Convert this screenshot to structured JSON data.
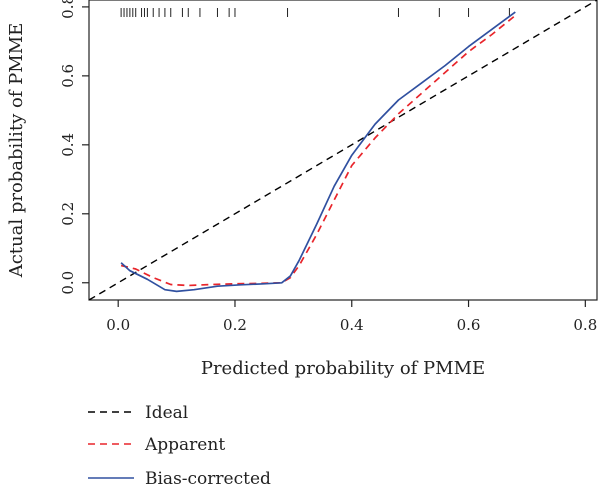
{
  "chart_data": {
    "type": "line",
    "xlabel": "Predicted probability of PMME",
    "ylabel": "Actual probability of PMME",
    "xlim": [
      -0.05,
      0.82
    ],
    "ylim": [
      -0.05,
      0.82
    ],
    "x_ticks": [
      0.0,
      0.2,
      0.4,
      0.6,
      0.8
    ],
    "x_tick_labels": [
      "0.0",
      "0.2",
      "0.4",
      "0.6",
      "0.8"
    ],
    "y_ticks": [
      0.0,
      0.2,
      0.4,
      0.6,
      0.8
    ],
    "y_tick_labels": [
      "0.0",
      "0.2",
      "0.4",
      "0.6",
      "0.8"
    ],
    "rug": [
      0.005,
      0.01,
      0.015,
      0.02,
      0.025,
      0.03,
      0.04,
      0.045,
      0.05,
      0.06,
      0.07,
      0.08,
      0.09,
      0.11,
      0.12,
      0.14,
      0.17,
      0.19,
      0.2,
      0.29,
      0.48,
      0.55,
      0.6,
      0.67
    ],
    "legend_position": "bottom-left",
    "series": [
      {
        "name": "Ideal",
        "color": "#000000",
        "dash": "dashed",
        "x": [
          -0.05,
          0.82
        ],
        "y": [
          -0.05,
          0.82
        ]
      },
      {
        "name": "Apparent",
        "color": "#e8252b",
        "dash": "dashed",
        "x": [
          0.005,
          0.03,
          0.06,
          0.09,
          0.12,
          0.16,
          0.2,
          0.24,
          0.28,
          0.295,
          0.31,
          0.34,
          0.37,
          0.4,
          0.44,
          0.48,
          0.52,
          0.56,
          0.6,
          0.64,
          0.68
        ],
        "y": [
          0.05,
          0.04,
          0.015,
          -0.005,
          -0.008,
          -0.005,
          -0.003,
          -0.002,
          0.0,
          0.015,
          0.05,
          0.14,
          0.24,
          0.34,
          0.42,
          0.49,
          0.55,
          0.61,
          0.67,
          0.72,
          0.775
        ]
      },
      {
        "name": "Bias-corrected",
        "color": "#3050a0",
        "dash": "solid",
        "x": [
          0.005,
          0.02,
          0.05,
          0.08,
          0.1,
          0.13,
          0.17,
          0.21,
          0.25,
          0.28,
          0.295,
          0.31,
          0.34,
          0.37,
          0.4,
          0.44,
          0.48,
          0.52,
          0.56,
          0.6,
          0.64,
          0.68
        ],
        "y": [
          0.058,
          0.035,
          0.01,
          -0.02,
          -0.025,
          -0.02,
          -0.01,
          -0.006,
          -0.003,
          0.0,
          0.02,
          0.065,
          0.17,
          0.28,
          0.37,
          0.46,
          0.53,
          0.58,
          0.63,
          0.685,
          0.735,
          0.785
        ]
      }
    ]
  }
}
